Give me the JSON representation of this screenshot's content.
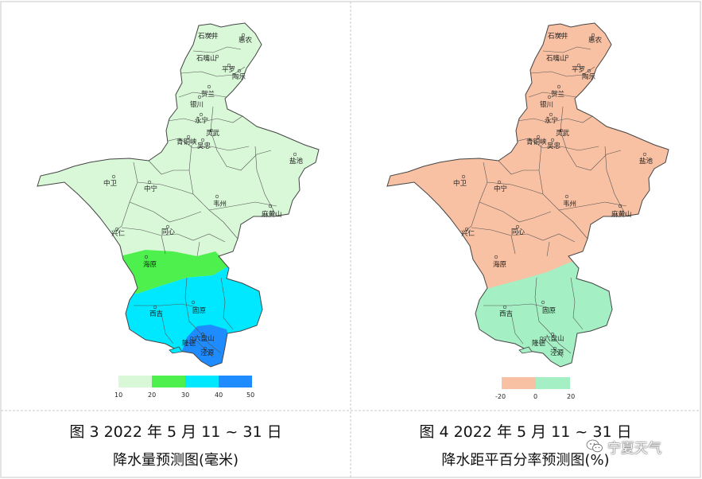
{
  "colors": {
    "light_green": "#d8f8d8",
    "green": "#4ef04e",
    "cyan": "#00e8ff",
    "blue": "#1e8cff",
    "salmon": "#f9c1a3",
    "mint": "#a4f0c4"
  },
  "left_map": {
    "legend_ticks": [
      "10",
      "20",
      "30",
      "40",
      "50"
    ],
    "caption_line1": "图 3 2022 年 5 月 11 ~ 31 日",
    "caption_line2": "降水量预测图(毫米)"
  },
  "right_map": {
    "legend_ticks": [
      "-20",
      "0",
      "20"
    ],
    "caption_line1": "图 4 2022 年 5 月 11 ~ 31 日",
    "caption_line2": "降水距平百分率预测图(%)"
  },
  "places": {
    "shizuishan": "石炭井",
    "huinong": "惠农",
    "shizuishan2": "石嘴山",
    "pingluo": "平罗",
    "taole": "陶乐",
    "helan": "贺兰",
    "yinchuan": "银川",
    "yongning": "永宁",
    "lingwu": "灵武",
    "qingtongxia": "青铜峡",
    "wuzhong": "吴忠",
    "yanchi": "盐池",
    "zhongwei": "中卫",
    "zhongning": "中宁",
    "weizhou": "韦州",
    "mahuangshan": "麻黄山",
    "xingren": "兴仁",
    "tongxin": "同心",
    "haiyuan": "海原",
    "xiji": "西吉",
    "guyuan": "固原",
    "longde": "隆德",
    "liupanshan": "六盘山",
    "jingyuan": "泾源"
  },
  "watermark": {
    "text": "宁夏天气",
    "icon": "wechat-icon"
  }
}
